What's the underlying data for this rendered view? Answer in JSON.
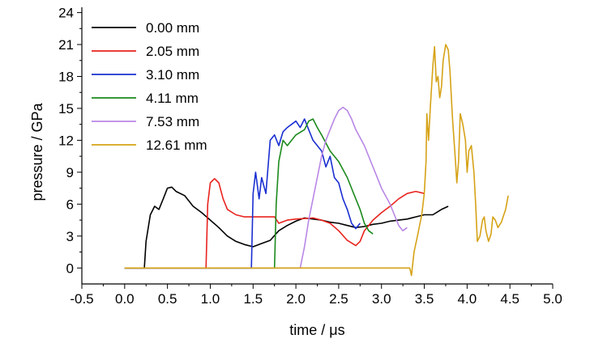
{
  "chart_data": {
    "type": "line",
    "xlabel": "time / μs",
    "ylabel": "pressure / GPa",
    "xlim": [
      -0.5,
      5.0
    ],
    "ylim": [
      -1.5,
      24.5
    ],
    "x_ticks": [
      "-0.5",
      "0.0",
      "0.5",
      "1.0",
      "1.5",
      "2.0",
      "2.5",
      "3.0",
      "3.5",
      "4.0",
      "4.5",
      "5.0"
    ],
    "y_ticks": [
      "0",
      "3",
      "6",
      "9",
      "12",
      "15",
      "18",
      "21",
      "24"
    ],
    "grid": false,
    "legend_position": "top-left",
    "series": [
      {
        "name": "0.00 mm",
        "color": "#000000",
        "points": [
          [
            0.0,
            0.0
          ],
          [
            0.23,
            0.0
          ],
          [
            0.25,
            2.5
          ],
          [
            0.3,
            5.0
          ],
          [
            0.35,
            5.8
          ],
          [
            0.4,
            5.5
          ],
          [
            0.45,
            6.5
          ],
          [
            0.5,
            7.5
          ],
          [
            0.55,
            7.6
          ],
          [
            0.6,
            7.2
          ],
          [
            0.7,
            6.8
          ],
          [
            0.8,
            5.8
          ],
          [
            0.9,
            5.2
          ],
          [
            1.0,
            4.5
          ],
          [
            1.1,
            3.8
          ],
          [
            1.2,
            3.0
          ],
          [
            1.3,
            2.5
          ],
          [
            1.4,
            2.2
          ],
          [
            1.5,
            2.0
          ],
          [
            1.6,
            2.3
          ],
          [
            1.7,
            2.6
          ],
          [
            1.8,
            3.5
          ],
          [
            1.9,
            4.0
          ],
          [
            2.0,
            4.4
          ],
          [
            2.1,
            4.7
          ],
          [
            2.2,
            4.6
          ],
          [
            2.3,
            4.5
          ],
          [
            2.4,
            4.3
          ],
          [
            2.5,
            4.2
          ],
          [
            2.6,
            4.0
          ],
          [
            2.7,
            3.8
          ],
          [
            2.8,
            3.9
          ],
          [
            2.9,
            4.1
          ],
          [
            3.0,
            4.2
          ],
          [
            3.1,
            4.4
          ],
          [
            3.2,
            4.5
          ],
          [
            3.3,
            4.6
          ],
          [
            3.4,
            4.8
          ],
          [
            3.5,
            5.0
          ],
          [
            3.6,
            5.0
          ],
          [
            3.7,
            5.5
          ],
          [
            3.78,
            5.8
          ]
        ]
      },
      {
        "name": "2.05 mm",
        "color": "#e8231e",
        "points": [
          [
            0.0,
            0.0
          ],
          [
            0.95,
            0.0
          ],
          [
            0.97,
            6.0
          ],
          [
            1.0,
            8.0
          ],
          [
            1.05,
            8.4
          ],
          [
            1.1,
            8.0
          ],
          [
            1.15,
            6.5
          ],
          [
            1.2,
            5.5
          ],
          [
            1.3,
            5.0
          ],
          [
            1.4,
            4.8
          ],
          [
            1.5,
            4.8
          ],
          [
            1.6,
            4.8
          ],
          [
            1.75,
            4.8
          ],
          [
            1.8,
            4.2
          ],
          [
            1.9,
            4.5
          ],
          [
            2.0,
            4.6
          ],
          [
            2.2,
            4.7
          ],
          [
            2.3,
            4.5
          ],
          [
            2.4,
            4.2
          ],
          [
            2.5,
            3.5
          ],
          [
            2.6,
            2.6
          ],
          [
            2.7,
            2.1
          ],
          [
            2.75,
            2.5
          ],
          [
            2.8,
            3.5
          ],
          [
            2.9,
            4.5
          ],
          [
            3.0,
            5.2
          ],
          [
            3.1,
            5.8
          ],
          [
            3.2,
            6.5
          ],
          [
            3.3,
            7.0
          ],
          [
            3.4,
            7.2
          ],
          [
            3.5,
            7.0
          ]
        ]
      },
      {
        "name": "3.10 mm",
        "color": "#1a2fd1",
        "points": [
          [
            0.0,
            0.0
          ],
          [
            1.48,
            0.0
          ],
          [
            1.5,
            7.0
          ],
          [
            1.53,
            9.0
          ],
          [
            1.57,
            6.5
          ],
          [
            1.6,
            8.5
          ],
          [
            1.65,
            7.0
          ],
          [
            1.7,
            12.0
          ],
          [
            1.75,
            12.5
          ],
          [
            1.8,
            11.5
          ],
          [
            1.85,
            12.8
          ],
          [
            1.9,
            13.2
          ],
          [
            1.95,
            13.5
          ],
          [
            2.0,
            13.8
          ],
          [
            2.05,
            13.2
          ],
          [
            2.1,
            14.0
          ],
          [
            2.15,
            13.0
          ],
          [
            2.2,
            12.0
          ],
          [
            2.3,
            11.0
          ],
          [
            2.35,
            9.5
          ],
          [
            2.4,
            10.5
          ],
          [
            2.45,
            8.5
          ],
          [
            2.5,
            8.0
          ],
          [
            2.55,
            6.5
          ],
          [
            2.6,
            5.5
          ],
          [
            2.65,
            4.2
          ],
          [
            2.7,
            3.7
          ],
          [
            2.75,
            4.2
          ]
        ]
      },
      {
        "name": "4.11 mm",
        "color": "#1c8a1c",
        "points": [
          [
            0.0,
            0.0
          ],
          [
            1.75,
            0.0
          ],
          [
            1.77,
            6.0
          ],
          [
            1.8,
            10.0
          ],
          [
            1.85,
            12.0
          ],
          [
            1.9,
            11.5
          ],
          [
            2.0,
            12.5
          ],
          [
            2.1,
            13.0
          ],
          [
            2.15,
            13.8
          ],
          [
            2.2,
            14.0
          ],
          [
            2.25,
            13.2
          ],
          [
            2.3,
            12.5
          ],
          [
            2.4,
            11.0
          ],
          [
            2.5,
            10.0
          ],
          [
            2.6,
            8.5
          ],
          [
            2.7,
            6.5
          ],
          [
            2.75,
            5.5
          ],
          [
            2.8,
            4.2
          ],
          [
            2.85,
            3.5
          ],
          [
            2.9,
            3.2
          ]
        ]
      },
      {
        "name": "7.53 mm",
        "color": "#b987e6",
        "points": [
          [
            0.0,
            0.0
          ],
          [
            2.05,
            0.0
          ],
          [
            2.1,
            2.0
          ],
          [
            2.15,
            4.5
          ],
          [
            2.2,
            6.5
          ],
          [
            2.25,
            8.5
          ],
          [
            2.3,
            10.5
          ],
          [
            2.35,
            12.0
          ],
          [
            2.4,
            13.0
          ],
          [
            2.45,
            14.0
          ],
          [
            2.5,
            14.8
          ],
          [
            2.55,
            15.1
          ],
          [
            2.6,
            14.8
          ],
          [
            2.65,
            14.0
          ],
          [
            2.7,
            13.0
          ],
          [
            2.8,
            11.5
          ],
          [
            2.9,
            9.5
          ],
          [
            3.0,
            7.5
          ],
          [
            3.1,
            6.0
          ],
          [
            3.15,
            5.0
          ],
          [
            3.2,
            4.0
          ],
          [
            3.25,
            3.5
          ],
          [
            3.3,
            3.8
          ]
        ]
      },
      {
        "name": "12.61 mm",
        "color": "#d6a217",
        "points": [
          [
            0.0,
            0.0
          ],
          [
            3.33,
            0.0
          ],
          [
            3.35,
            -0.7
          ],
          [
            3.38,
            1.5
          ],
          [
            3.42,
            3.0
          ],
          [
            3.47,
            5.0
          ],
          [
            3.5,
            7.0
          ],
          [
            3.52,
            10.0
          ],
          [
            3.53,
            14.5
          ],
          [
            3.55,
            12.0
          ],
          [
            3.57,
            15.0
          ],
          [
            3.6,
            19.0
          ],
          [
            3.62,
            20.8
          ],
          [
            3.64,
            17.5
          ],
          [
            3.66,
            18.0
          ],
          [
            3.68,
            16.0
          ],
          [
            3.7,
            17.0
          ],
          [
            3.72,
            19.5
          ],
          [
            3.75,
            21.0
          ],
          [
            3.78,
            20.5
          ],
          [
            3.8,
            18.5
          ],
          [
            3.83,
            14.0
          ],
          [
            3.86,
            10.5
          ],
          [
            3.88,
            8.0
          ],
          [
            3.9,
            10.0
          ],
          [
            3.92,
            14.5
          ],
          [
            3.95,
            13.5
          ],
          [
            3.98,
            12.0
          ],
          [
            4.0,
            9.0
          ],
          [
            4.02,
            11.0
          ],
          [
            4.05,
            11.5
          ],
          [
            4.08,
            9.0
          ],
          [
            4.1,
            6.0
          ],
          [
            4.12,
            2.5
          ],
          [
            4.15,
            3.0
          ],
          [
            4.18,
            4.5
          ],
          [
            4.2,
            4.8
          ],
          [
            4.22,
            3.5
          ],
          [
            4.25,
            2.5
          ],
          [
            4.28,
            3.2
          ],
          [
            4.3,
            4.8
          ],
          [
            4.33,
            4.5
          ],
          [
            4.36,
            3.8
          ],
          [
            4.4,
            4.3
          ],
          [
            4.45,
            5.5
          ],
          [
            4.48,
            6.8
          ]
        ]
      }
    ]
  }
}
